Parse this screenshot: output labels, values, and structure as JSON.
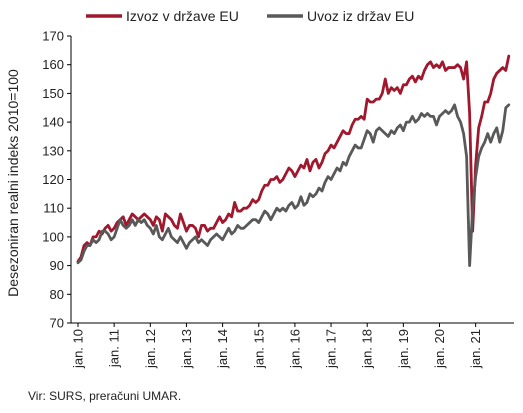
{
  "chart_data": {
    "type": "line",
    "ylabel": "Desezoniran realni indeks 2010=100",
    "ylim": [
      70,
      170
    ],
    "yticks": [
      70,
      80,
      90,
      100,
      110,
      120,
      130,
      140,
      150,
      160,
      170
    ],
    "xticks": [
      "jan. 10",
      "jan. 11",
      "jan. 12",
      "jan. 13",
      "jan. 14",
      "jan. 15",
      "jan. 16",
      "jan. 17",
      "jan. 18",
      "jan. 19",
      "jan. 20",
      "jan. 21"
    ],
    "grid": false,
    "legend": "top",
    "series": [
      {
        "name": "Izvoz v države EU",
        "color": "#a0182d",
        "values": [
          91.5,
          93,
          97,
          98,
          97,
          100,
          100,
          102,
          101,
          103,
          104,
          102,
          103,
          105,
          106,
          107,
          104,
          106,
          108,
          107,
          106,
          107,
          108,
          107,
          106,
          104,
          107,
          106,
          102,
          108,
          107,
          106,
          104,
          103,
          108,
          105,
          102,
          104,
          104,
          103,
          100,
          104,
          104,
          102,
          103,
          103,
          105,
          107,
          105,
          106,
          108,
          107,
          112,
          109,
          109,
          110,
          110,
          111,
          113,
          112,
          113,
          116,
          118,
          118,
          120,
          120,
          121,
          119,
          120,
          122,
          124,
          123,
          121,
          123,
          125,
          124,
          127,
          123,
          126,
          127,
          124,
          126,
          129,
          130,
          132,
          131,
          133,
          135,
          137,
          136,
          136,
          139,
          141,
          141,
          142,
          141,
          148,
          147,
          147,
          148,
          148,
          150,
          155,
          150,
          152,
          151,
          152,
          150,
          153,
          153,
          155,
          156,
          154,
          156,
          155,
          158,
          160,
          161,
          159,
          160,
          159,
          161,
          158,
          159,
          159,
          159,
          160,
          159,
          155,
          161,
          143,
          102,
          125,
          138,
          142,
          147,
          147,
          150,
          155,
          157,
          158,
          159,
          158,
          163
        ]
      },
      {
        "name": "Uvoz iz držav EU",
        "color": "#595959",
        "values": [
          91,
          92,
          95,
          97,
          97,
          99,
          98,
          99,
          102,
          102,
          101,
          99,
          100,
          103,
          106,
          104,
          103,
          104,
          106,
          104,
          106,
          105,
          106,
          104,
          103,
          101,
          104,
          100,
          99,
          101,
          103,
          100,
          99,
          98,
          100,
          98,
          96,
          98,
          99,
          100,
          98,
          99,
          98,
          97,
          99,
          100,
          101,
          100,
          99,
          101,
          103,
          101,
          102,
          104,
          103,
          103,
          104,
          105,
          106,
          106,
          105,
          107,
          109,
          108,
          106,
          108,
          110,
          109,
          110,
          109,
          111,
          112,
          110,
          111,
          114,
          111,
          112,
          115,
          114,
          115,
          117,
          116,
          119,
          121,
          120,
          122,
          124,
          123,
          126,
          125,
          128,
          130,
          132,
          131,
          131,
          134,
          137,
          136,
          133,
          137,
          138,
          137,
          136,
          135,
          137,
          136,
          138,
          139,
          137,
          140,
          140,
          142,
          140,
          141,
          143,
          142,
          143,
          142,
          142,
          139,
          142,
          143,
          144,
          143,
          144,
          146,
          142,
          140,
          136,
          128,
          90,
          110,
          121,
          128,
          131,
          133,
          136,
          133,
          136,
          138,
          133,
          137,
          145,
          146
        ]
      }
    ]
  },
  "source": "Vir: SURS, preračuni UMAR."
}
